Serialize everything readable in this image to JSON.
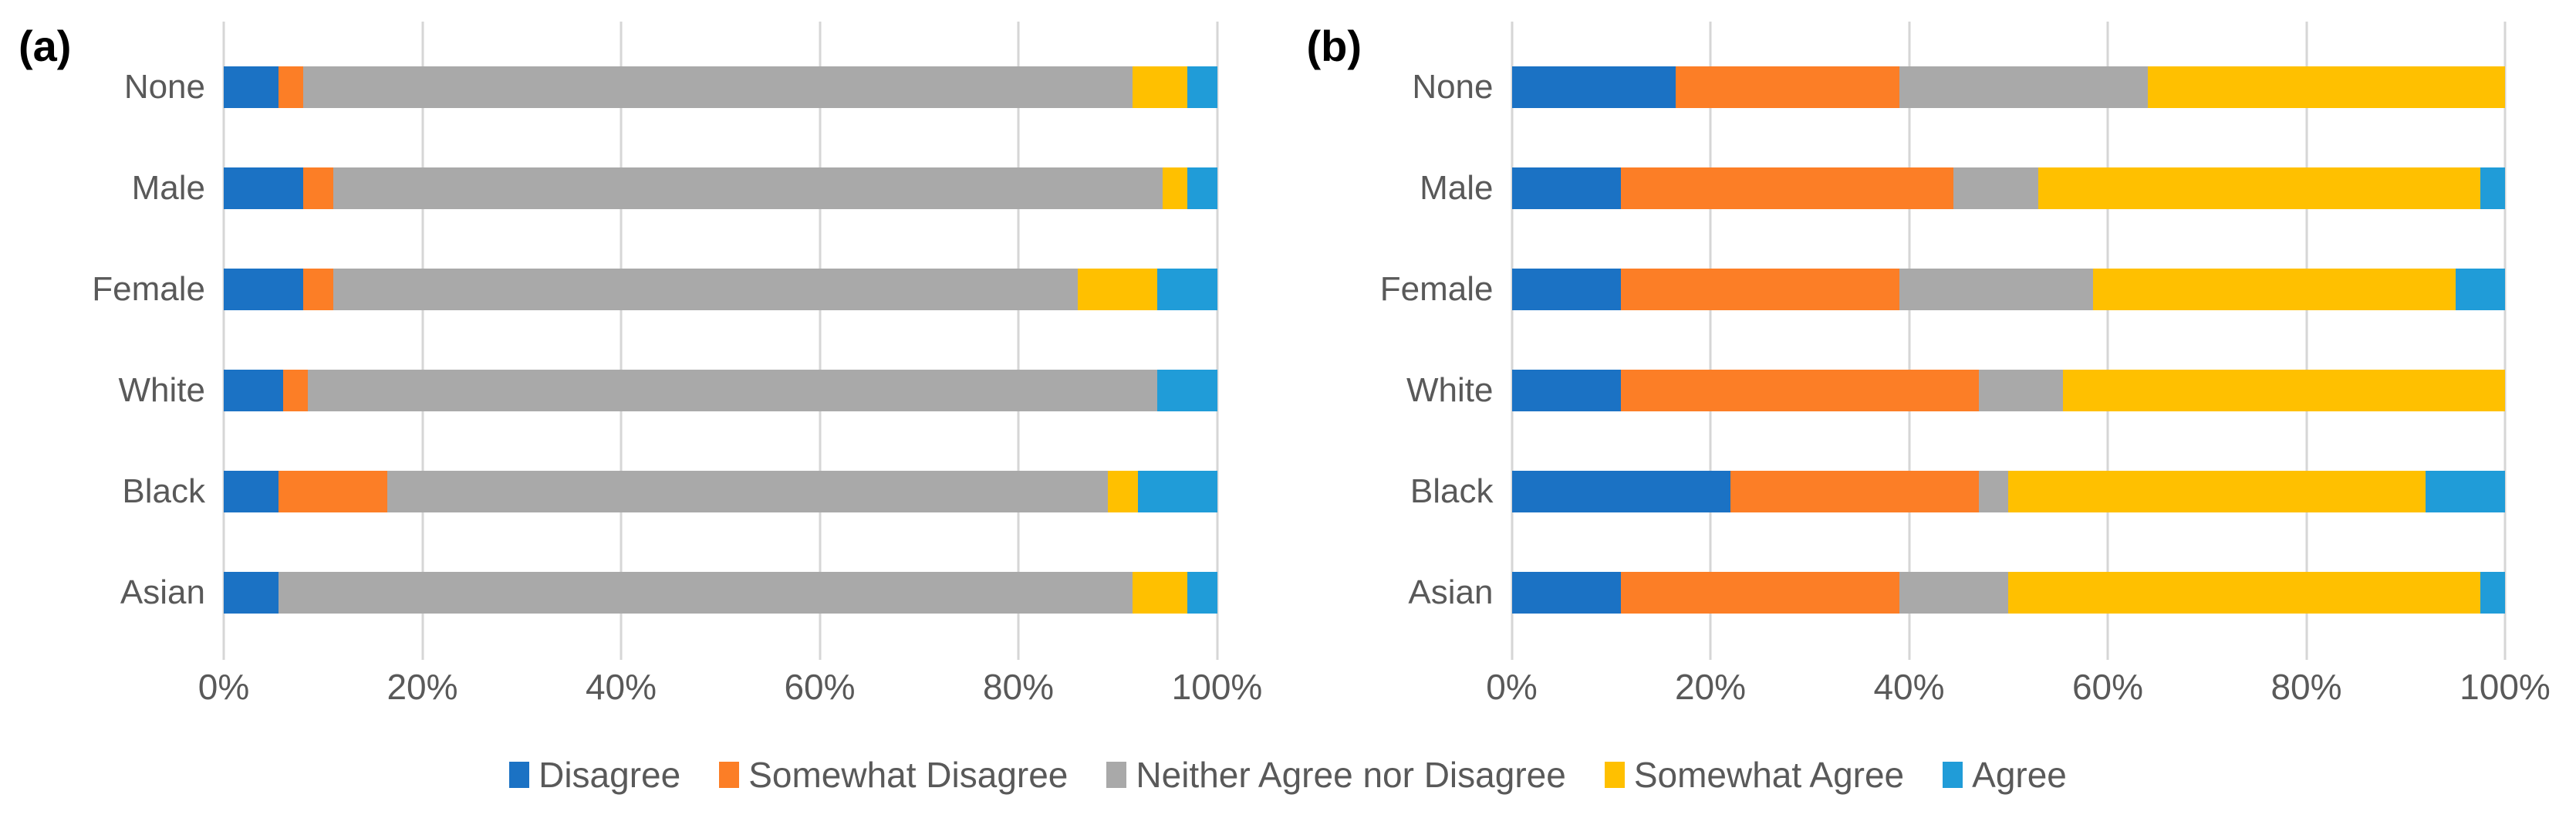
{
  "legend": {
    "position": "bottom",
    "items": [
      {
        "label": "Disagree",
        "color": "#1b72c4"
      },
      {
        "label": "Somewhat Disagree",
        "color": "#fc7e26"
      },
      {
        "label": "Neither Agree nor Disagree",
        "color": "#a9a9a9"
      },
      {
        "label": "Somewhat Agree",
        "color": "#ffc000"
      },
      {
        "label": "Agree",
        "color": "#209cd8"
      }
    ]
  },
  "chart_data": [
    {
      "type": "bar",
      "orientation": "horizontal",
      "stacked": true,
      "panel_label": "(a)",
      "xlim": [
        0,
        100
      ],
      "grid": true,
      "xticks": [
        0,
        20,
        40,
        60,
        80,
        100
      ],
      "xticklabels": [
        "0%",
        "20%",
        "40%",
        "60%",
        "80%",
        "100%"
      ],
      "categories": [
        "None",
        "Male",
        "Female",
        "White",
        "Black",
        "Asian"
      ],
      "series": [
        {
          "name": "Disagree",
          "values": [
            5.5,
            8,
            8,
            6,
            5.5,
            5.5
          ]
        },
        {
          "name": "Somewhat Disagree",
          "values": [
            2.5,
            3,
            3,
            2.5,
            11,
            0
          ]
        },
        {
          "name": "Neither Agree nor Disagree",
          "values": [
            83.5,
            83.5,
            75,
            85.5,
            72.5,
            86
          ]
        },
        {
          "name": "Somewhat Agree",
          "values": [
            5.5,
            2.5,
            8,
            0,
            3,
            5.5
          ]
        },
        {
          "name": "Agree",
          "values": [
            3,
            3,
            6,
            6,
            8,
            3
          ]
        }
      ]
    },
    {
      "type": "bar",
      "orientation": "horizontal",
      "stacked": true,
      "panel_label": "(b)",
      "xlim": [
        0,
        100
      ],
      "grid": true,
      "xticks": [
        0,
        20,
        40,
        60,
        80,
        100
      ],
      "xticklabels": [
        "0%",
        "20%",
        "40%",
        "60%",
        "80%",
        "100%"
      ],
      "categories": [
        "None",
        "Male",
        "Female",
        "White",
        "Black",
        "Asian"
      ],
      "series": [
        {
          "name": "Disagree",
          "values": [
            16.5,
            11,
            11,
            11,
            22,
            11
          ]
        },
        {
          "name": "Somewhat Disagree",
          "values": [
            22.5,
            33.5,
            28,
            36,
            25,
            28
          ]
        },
        {
          "name": "Neither Agree nor Disagree",
          "values": [
            25,
            8.5,
            19.5,
            8.5,
            3,
            11
          ]
        },
        {
          "name": "Somewhat Agree",
          "values": [
            36,
            44.5,
            36.5,
            44.5,
            42,
            47.5
          ]
        },
        {
          "name": "Agree",
          "values": [
            0,
            2.5,
            5,
            0,
            8,
            2.5
          ]
        }
      ]
    }
  ]
}
